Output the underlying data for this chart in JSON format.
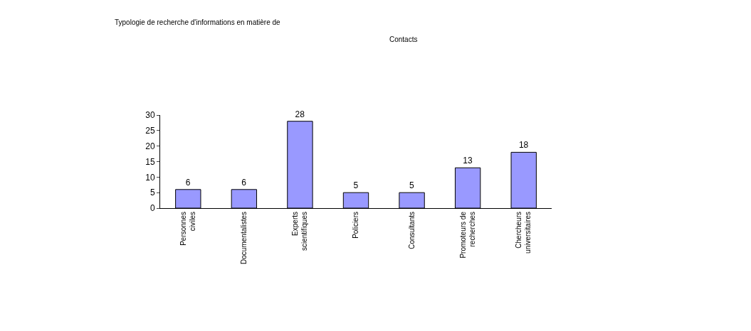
{
  "chart_data": {
    "type": "bar",
    "title": "Typologie de recherche d'informations en matière de\nContacts",
    "categories": [
      "Personnes\nciviles",
      "Documentalistes",
      "Experts\nscientifiques",
      "Policiers",
      "Consultants",
      "Promoteurs de\nrecherches",
      "Chercheurs\nuniversitaires"
    ],
    "values": [
      6,
      6,
      28,
      5,
      5,
      13,
      18
    ],
    "color": "#9999ff",
    "data_labels": true,
    "ylim": [
      0,
      30
    ],
    "yticks": [
      0,
      5,
      10,
      15,
      20,
      25,
      30
    ],
    "grid": false,
    "legend": false
  }
}
